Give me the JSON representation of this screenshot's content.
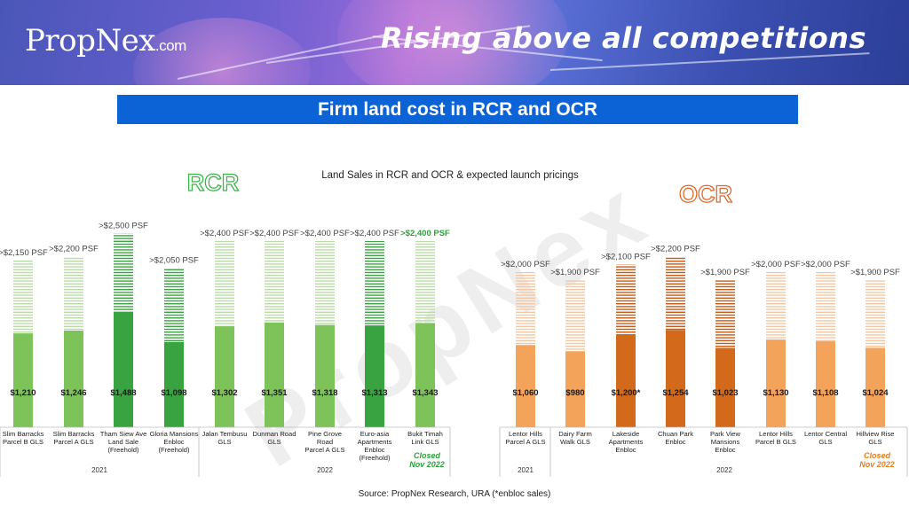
{
  "header": {
    "logo_main": "PropNex",
    "logo_suffix": ".com",
    "slogan": "Rising above all competitions"
  },
  "title_bar": "Firm land cost in RCR and OCR",
  "watermark": "PropNex",
  "footnote": "Source: PropNex Research, URA (*enbloc sales)",
  "colors": {
    "rcr_light": "#7dc35a",
    "rcr_dark": "#3aa341",
    "ocr_light": "#f4a35b",
    "ocr_dark": "#d36a1b",
    "closed_rcr": "#2fa23c",
    "closed_ocr": "#e67e22",
    "title_bar": "#0b63d6"
  },
  "chart_data": {
    "type": "bar",
    "title": "Land Sales in RCR and OCR & expected launch pricings",
    "ylim": [
      0,
      2600
    ],
    "units": "PSF",
    "groups": [
      {
        "label": "RCR",
        "color": "green",
        "categories": [
          {
            "name": [
              "Slim Barracks",
              "Parcel B GLS"
            ],
            "land_cost": 1210,
            "land_cost_label": "$1,210",
            "launch_price": 2150,
            "launch_label": ">$2,150 PSF",
            "year": "2021",
            "highlight": false
          },
          {
            "name": [
              "Slim Barracks",
              "Parcel A GLS"
            ],
            "land_cost": 1246,
            "land_cost_label": "$1,246",
            "launch_price": 2200,
            "launch_label": ">$2,200 PSF",
            "year": "2021",
            "highlight": false
          },
          {
            "name": [
              "Tham Siew Ave",
              "Land Sale",
              "(Freehold)"
            ],
            "land_cost": 1488,
            "land_cost_label": "$1,488",
            "launch_price": 2500,
            "launch_label": ">$2,500 PSF",
            "year": "2021",
            "highlight": true
          },
          {
            "name": [
              "Gloria Mansions",
              "Enbloc",
              "(Freehold)"
            ],
            "land_cost": 1098,
            "land_cost_label": "$1,098",
            "launch_price": 2050,
            "launch_label": ">$2,050 PSF",
            "year": "2021",
            "highlight": true
          },
          {
            "name": [
              "Jalan Tembusu",
              "GLS"
            ],
            "land_cost": 1302,
            "land_cost_label": "$1,302",
            "launch_price": 2400,
            "launch_label": ">$2,400 PSF",
            "year": "2022",
            "highlight": false
          },
          {
            "name": [
              "Dunman Road",
              "GLS"
            ],
            "land_cost": 1351,
            "land_cost_label": "$1,351",
            "launch_price": 2400,
            "launch_label": ">$2,400 PSF",
            "year": "2022",
            "highlight": false
          },
          {
            "name": [
              "Pine Grove",
              "Road",
              "Parcel A GLS"
            ],
            "land_cost": 1318,
            "land_cost_label": "$1,318",
            "launch_price": 2400,
            "launch_label": ">$2,400 PSF",
            "year": "2022",
            "highlight": false
          },
          {
            "name": [
              "Euro-asia",
              "Apartments",
              "Enbloc",
              "(Freehold)"
            ],
            "land_cost": 1313,
            "land_cost_label": "$1,313",
            "launch_price": 2400,
            "launch_label": ">$2,400 PSF",
            "year": "2022",
            "highlight": true
          },
          {
            "name": [
              "Bukit Timah",
              "Link GLS"
            ],
            "land_cost": 1343,
            "land_cost_label": "$1,343",
            "launch_price": 2400,
            "launch_label": ">$2,400 PSF",
            "year": "2022",
            "highlight": false,
            "launch_label_bold": true,
            "note": [
              "Closed",
              "Nov 2022"
            ]
          }
        ]
      },
      {
        "label": "OCR",
        "color": "orange",
        "categories": [
          {
            "name": [
              "Lentor Hills",
              "Parcel A GLS"
            ],
            "land_cost": 1060,
            "land_cost_label": "$1,060",
            "launch_price": 2000,
            "launch_label": ">$2,000 PSF",
            "year": "2021",
            "highlight": false
          },
          {
            "name": [
              "Dairy Farm",
              "Walk GLS"
            ],
            "land_cost": 980,
            "land_cost_label": "$980",
            "launch_price": 1900,
            "launch_label": ">$1,900 PSF",
            "year": "2022",
            "highlight": false
          },
          {
            "name": [
              "Lakeside",
              "Apartments",
              "Enbloc"
            ],
            "land_cost": 1200,
            "land_cost_label": "$1,200*",
            "launch_price": 2100,
            "launch_label": ">$2,100 PSF",
            "year": "2022",
            "highlight": true
          },
          {
            "name": [
              "Chuan Park",
              "Enbloc"
            ],
            "land_cost": 1254,
            "land_cost_label": "$1,254",
            "launch_price": 2200,
            "launch_label": ">$2,200 PSF",
            "year": "2022",
            "highlight": true
          },
          {
            "name": [
              "Park View",
              "Mansions",
              "Enbloc"
            ],
            "land_cost": 1023,
            "land_cost_label": "$1,023",
            "launch_price": 1900,
            "launch_label": ">$1,900 PSF",
            "year": "2022",
            "highlight": true
          },
          {
            "name": [
              "Lentor Hills",
              "Parcel B GLS"
            ],
            "land_cost": 1130,
            "land_cost_label": "$1,130",
            "launch_price": 2000,
            "launch_label": ">$2,000 PSF",
            "year": "2022",
            "highlight": false
          },
          {
            "name": [
              "Lentor Central",
              "GLS"
            ],
            "land_cost": 1108,
            "land_cost_label": "$1,108",
            "launch_price": 2000,
            "launch_label": ">$2,000 PSF",
            "year": "2022",
            "highlight": false
          },
          {
            "name": [
              "Hillview Rise",
              "GLS"
            ],
            "land_cost": 1024,
            "land_cost_label": "$1,024",
            "launch_price": 1900,
            "launch_label": ">$1,900 PSF",
            "year": "2022",
            "highlight": false,
            "note": [
              "Closed",
              "Nov 2022"
            ]
          }
        ]
      }
    ],
    "year_labels": {
      "rcr": [
        "2021",
        "2022"
      ],
      "ocr": [
        "2021",
        "2022"
      ]
    }
  }
}
